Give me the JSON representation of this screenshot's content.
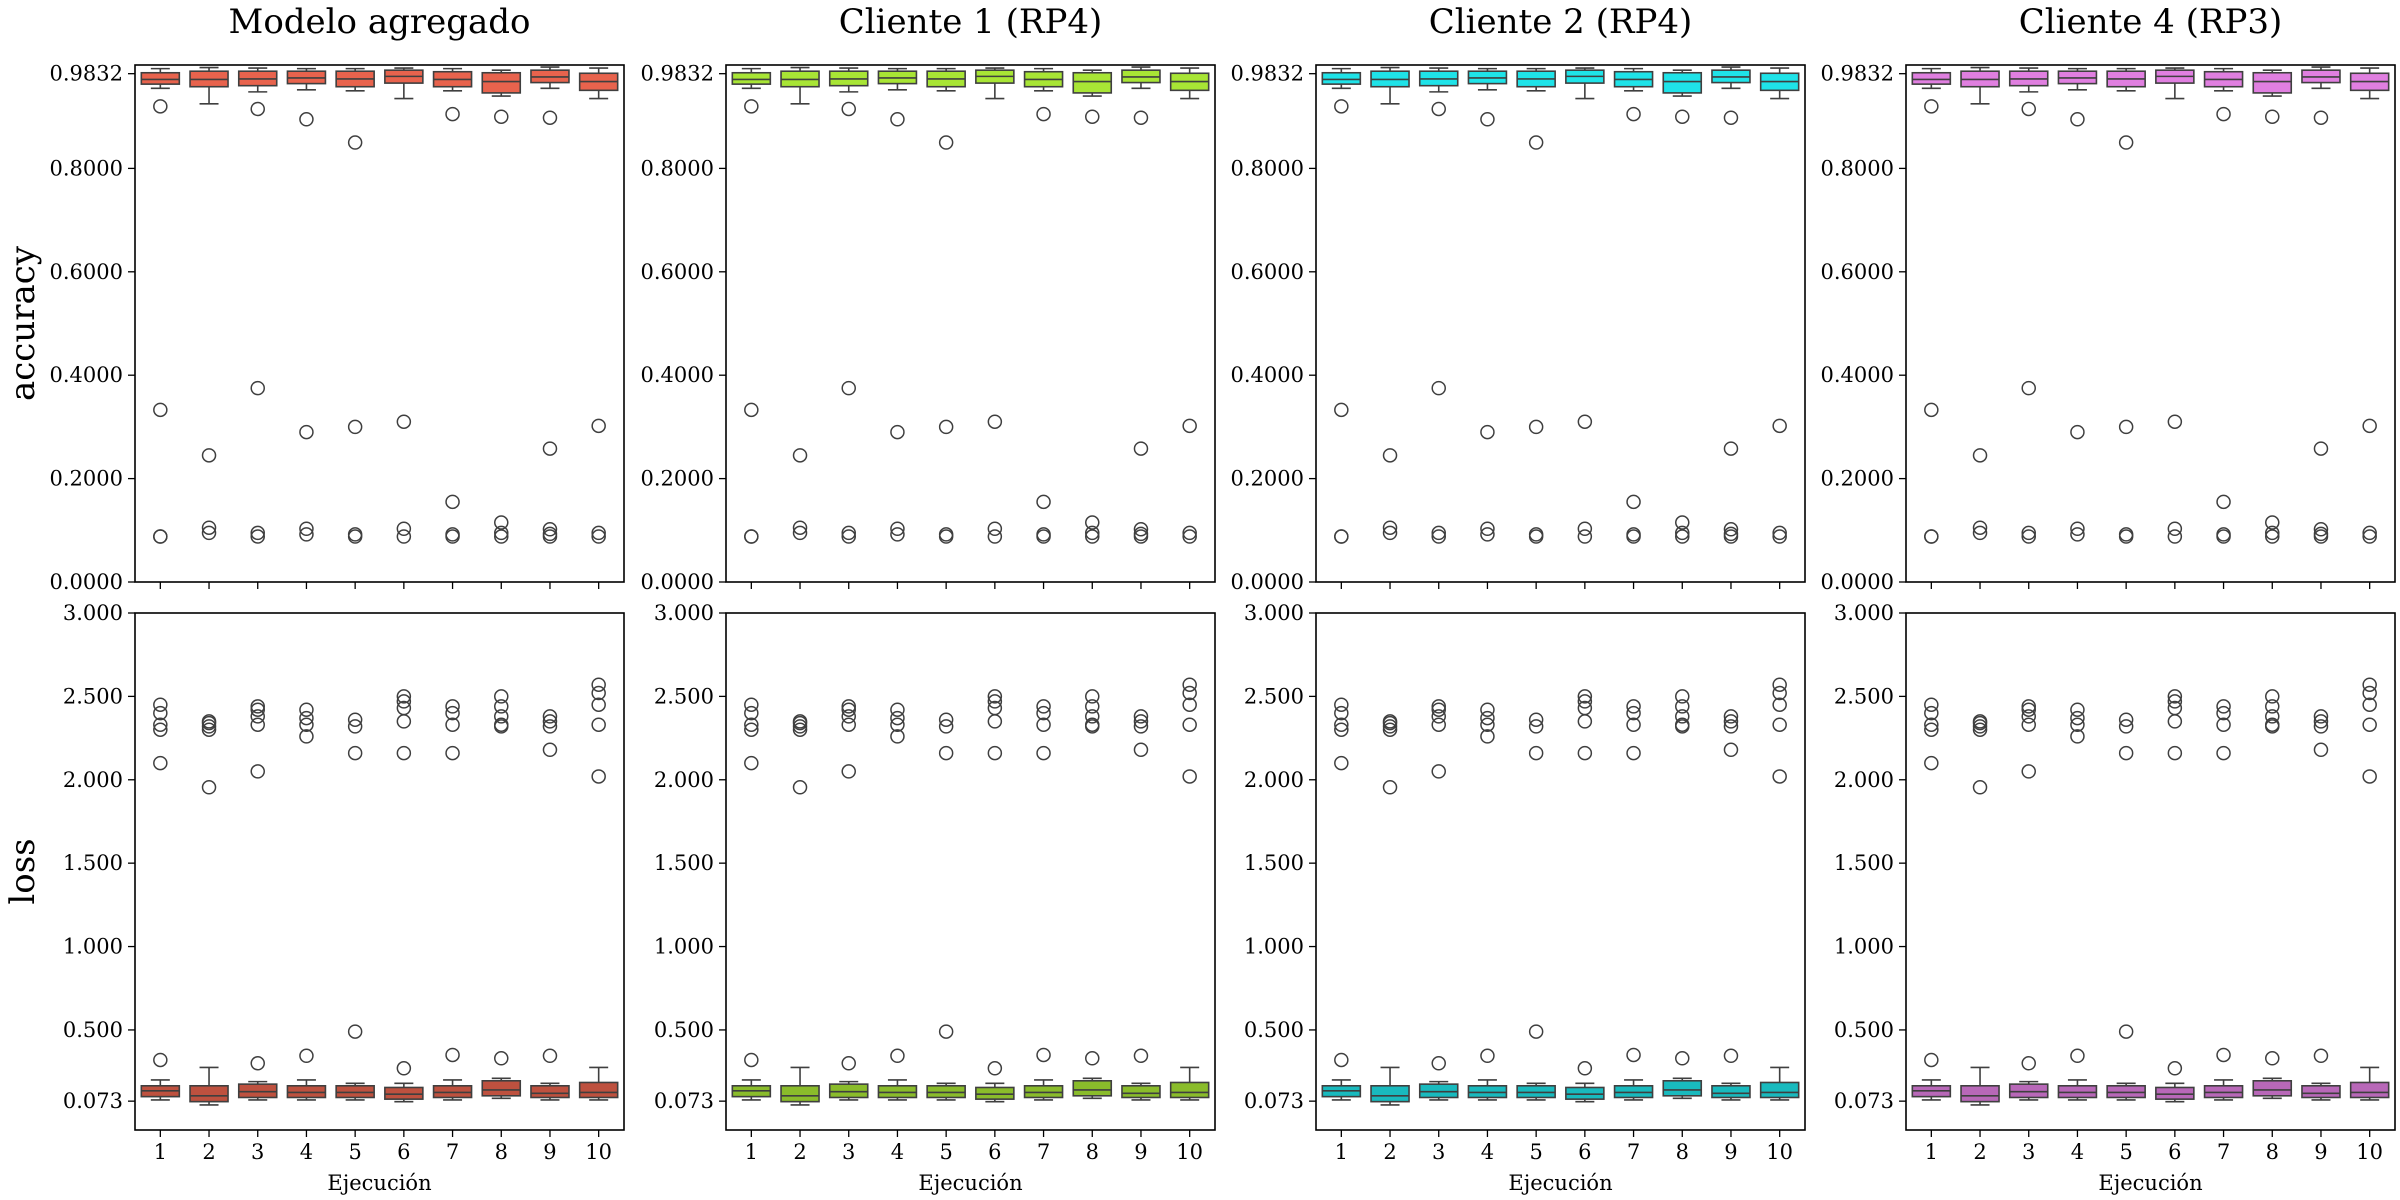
{
  "chart_data": {
    "type": "boxplot",
    "grid": false,
    "columns": [
      {
        "title": "Modelo agregado",
        "fill": "#e8634d"
      },
      {
        "title": "Cliente 1 (RP4)",
        "fill": "#a8e535"
      },
      {
        "title": "Cliente 2 (RP4)",
        "fill": "#1fe3e8"
      },
      {
        "title": "Cliente 4 (RP3)",
        "fill": "#e07fe0"
      }
    ],
    "xlabel": "Ejecución",
    "categories": [
      "1",
      "2",
      "3",
      "4",
      "5",
      "6",
      "7",
      "8",
      "9",
      "10"
    ],
    "rows": [
      {
        "ylabel": "accuracy",
        "ylim": [
          0,
          1.0
        ],
        "yticks": [
          0.0,
          0.2,
          0.4,
          0.6,
          0.8,
          0.9832
        ],
        "ytick_labels": [
          "0.0000",
          "0.2000",
          "0.4000",
          "0.6000",
          "0.8000",
          "0.9832"
        ],
        "boxes": [
          {
            "whislo": 0.955,
            "q1": 0.963,
            "med": 0.972,
            "q3": 0.985,
            "whishi": 0.993,
            "fliers": [
              0.92,
              0.333,
              0.088,
              0.088
            ]
          },
          {
            "whislo": 0.925,
            "q1": 0.958,
            "med": 0.972,
            "q3": 0.988,
            "whishi": 0.995,
            "fliers": [
              0.245,
              0.105,
              0.095
            ]
          },
          {
            "whislo": 0.948,
            "q1": 0.96,
            "med": 0.973,
            "q3": 0.988,
            "whishi": 0.994,
            "fliers": [
              0.915,
              0.375,
              0.095,
              0.088
            ]
          },
          {
            "whislo": 0.952,
            "q1": 0.964,
            "med": 0.975,
            "q3": 0.988,
            "whishi": 0.993,
            "fliers": [
              0.895,
              0.29,
              0.103,
              0.092
            ]
          },
          {
            "whislo": 0.95,
            "q1": 0.958,
            "med": 0.973,
            "q3": 0.988,
            "whishi": 0.993,
            "fliers": [
              0.85,
              0.3,
              0.092,
              0.088
            ]
          },
          {
            "whislo": 0.935,
            "q1": 0.965,
            "med": 0.978,
            "q3": 0.99,
            "whishi": 0.994,
            "fliers": [
              0.31,
              0.103,
              0.088
            ]
          },
          {
            "whislo": 0.95,
            "q1": 0.958,
            "med": 0.972,
            "q3": 0.987,
            "whishi": 0.993,
            "fliers": [
              0.905,
              0.155,
              0.092,
              0.088
            ]
          },
          {
            "whislo": 0.94,
            "q1": 0.946,
            "med": 0.968,
            "q3": 0.985,
            "whishi": 0.99,
            "fliers": [
              0.9,
              0.115,
              0.095,
              0.088
            ]
          },
          {
            "whislo": 0.955,
            "q1": 0.966,
            "med": 0.977,
            "q3": 0.99,
            "whishi": 0.996,
            "fliers": [
              0.898,
              0.258,
              0.102,
              0.093,
              0.088
            ]
          },
          {
            "whislo": 0.935,
            "q1": 0.951,
            "med": 0.968,
            "q3": 0.984,
            "whishi": 0.994,
            "fliers": [
              0.302,
              0.095,
              0.088
            ]
          }
        ]
      },
      {
        "ylabel": "loss",
        "ylim": [
          -0.1,
          3.0
        ],
        "yticks": [
          0.073,
          0.5,
          1.0,
          1.5,
          2.0,
          2.5,
          3.0
        ],
        "ytick_labels": [
          "0.073",
          "0.500",
          "1.000",
          "1.500",
          "2.000",
          "2.500",
          "3.000"
        ],
        "boxes": [
          {
            "whislo": 0.08,
            "q1": 0.1,
            "med": 0.135,
            "q3": 0.165,
            "whishi": 0.2,
            "fliers": [
              0.32,
              2.1,
              2.3,
              2.33,
              2.4,
              2.45
            ]
          },
          {
            "whislo": 0.05,
            "q1": 0.07,
            "med": 0.105,
            "q3": 0.165,
            "whishi": 0.275,
            "fliers": [
              1.955,
              2.3,
              2.32,
              2.34,
              2.35
            ]
          },
          {
            "whislo": 0.08,
            "q1": 0.095,
            "med": 0.13,
            "q3": 0.175,
            "whishi": 0.19,
            "fliers": [
              0.3,
              2.05,
              2.33,
              2.38,
              2.42,
              2.44
            ]
          },
          {
            "whislo": 0.08,
            "q1": 0.095,
            "med": 0.125,
            "q3": 0.165,
            "whishi": 0.2,
            "fliers": [
              0.345,
              2.26,
              2.33,
              2.37,
              2.42
            ]
          },
          {
            "whislo": 0.08,
            "q1": 0.095,
            "med": 0.125,
            "q3": 0.165,
            "whishi": 0.18,
            "fliers": [
              0.49,
              2.16,
              2.32,
              2.36
            ]
          },
          {
            "whislo": 0.07,
            "q1": 0.085,
            "med": 0.115,
            "q3": 0.155,
            "whishi": 0.18,
            "fliers": [
              0.27,
              2.16,
              2.35,
              2.43,
              2.47,
              2.5
            ]
          },
          {
            "whislo": 0.08,
            "q1": 0.095,
            "med": 0.125,
            "q3": 0.165,
            "whishi": 0.2,
            "fliers": [
              0.35,
              2.16,
              2.33,
              2.4,
              2.44
            ]
          },
          {
            "whislo": 0.09,
            "q1": 0.105,
            "med": 0.14,
            "q3": 0.195,
            "whishi": 0.21,
            "fliers": [
              0.33,
              2.32,
              2.33,
              2.38,
              2.44,
              2.5
            ]
          },
          {
            "whislo": 0.08,
            "q1": 0.095,
            "med": 0.12,
            "q3": 0.165,
            "whishi": 0.18,
            "fliers": [
              0.345,
              2.18,
              2.32,
              2.35,
              2.38
            ]
          },
          {
            "whislo": 0.08,
            "q1": 0.095,
            "med": 0.125,
            "q3": 0.185,
            "whishi": 0.275,
            "fliers": [
              2.02,
              2.33,
              2.45,
              2.52,
              2.57
            ]
          }
        ]
      }
    ]
  }
}
